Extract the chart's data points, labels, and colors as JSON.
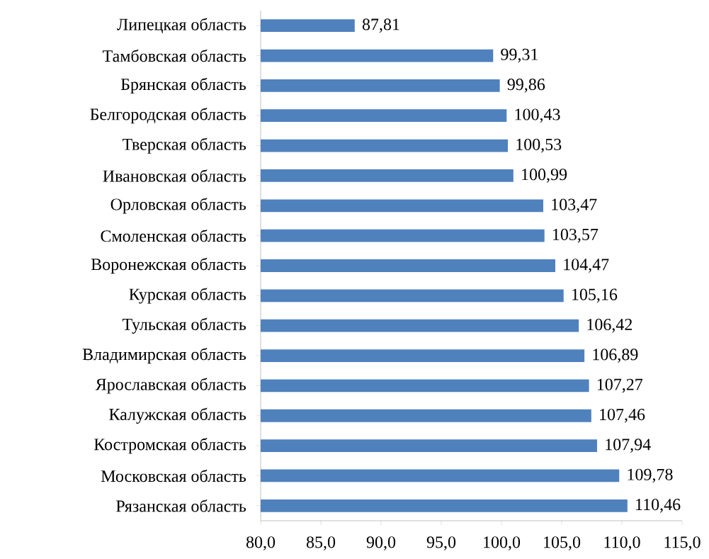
{
  "chart_data": {
    "type": "bar",
    "orientation": "horizontal",
    "color": "#4f81bd",
    "categories": [
      "Липецкая область",
      "Тамбовская область",
      "Брянская область",
      "Белгородская область",
      "Тверская область",
      "Ивановская область",
      "Орловская область",
      "Смоленская область",
      "Воронежская область",
      "Курская область",
      "Тульская область",
      "Владимирская область",
      "Ярославская область",
      "Калужская область",
      "Костромская область",
      "Московская область",
      "Рязанская область"
    ],
    "values": [
      87.81,
      99.31,
      99.86,
      100.43,
      100.53,
      100.99,
      103.47,
      103.57,
      104.47,
      105.16,
      106.42,
      106.89,
      107.27,
      107.46,
      107.94,
      109.78,
      110.46
    ],
    "value_labels": [
      "87,81",
      "99,31",
      "99,86",
      "100,43",
      "100,53",
      "100,99",
      "103,47",
      "103,57",
      "104,47",
      "105,16",
      "106,42",
      "106,89",
      "107,27",
      "107,46",
      "107,94",
      "109,78",
      "110,46"
    ],
    "xlim": [
      80,
      115
    ],
    "xticks": [
      {
        "value": 80,
        "label": "80,0"
      },
      {
        "value": 85,
        "label": "85,0"
      },
      {
        "value": 90,
        "label": "90,0"
      },
      {
        "value": 95,
        "label": "95,0"
      },
      {
        "value": 100,
        "label": "100,0"
      },
      {
        "value": 105,
        "label": "105,0"
      },
      {
        "value": 110,
        "label": "110,0"
      },
      {
        "value": 115,
        "label": "115,0"
      }
    ]
  }
}
